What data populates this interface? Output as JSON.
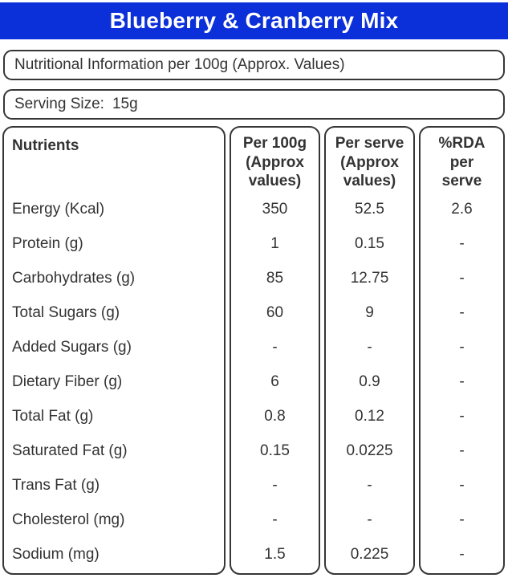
{
  "colors": {
    "header_bg": "#0B2FD8",
    "header_text": "#FFFFFF",
    "border": "#363636",
    "text": "#333333"
  },
  "header": {
    "title": "Blueberry & Cranberry Mix"
  },
  "info_box": {
    "text": "Nutritional Information per 100g (Approx. Values)"
  },
  "serving_box": {
    "label": "Serving Size:",
    "value": "15g"
  },
  "table": {
    "columns": {
      "nutrients": "Nutrients",
      "per_100g": "Per 100g\n(Approx\nvalues)",
      "per_serve": "Per serve\n(Approx\nvalues)",
      "rda": "%RDA\nper\nserve"
    },
    "rows": [
      {
        "label": "Energy (Kcal)",
        "per_100g": "350",
        "per_serve": "52.5",
        "rda": "2.6"
      },
      {
        "label": "Protein (g)",
        "per_100g": "1",
        "per_serve": "0.15",
        "rda": "-"
      },
      {
        "label": "Carbohydrates (g)",
        "per_100g": "85",
        "per_serve": "12.75",
        "rda": "-"
      },
      {
        "label": "Total Sugars (g)",
        "per_100g": "60",
        "per_serve": "9",
        "rda": "-"
      },
      {
        "label": "Added Sugars (g)",
        "per_100g": "-",
        "per_serve": "-",
        "rda": "-"
      },
      {
        "label": "Dietary Fiber (g)",
        "per_100g": "6",
        "per_serve": "0.9",
        "rda": "-"
      },
      {
        "label": "Total Fat (g)",
        "per_100g": "0.8",
        "per_serve": "0.12",
        "rda": "-"
      },
      {
        "label": "Saturated Fat (g)",
        "per_100g": "0.15",
        "per_serve": "0.0225",
        "rda": "-"
      },
      {
        "label": "Trans Fat (g)",
        "per_100g": "-",
        "per_serve": "-",
        "rda": "-"
      },
      {
        "label": "Cholesterol (mg)",
        "per_100g": "-",
        "per_serve": "-",
        "rda": "-"
      },
      {
        "label": "Sodium (mg)",
        "per_100g": "1.5",
        "per_serve": "0.225",
        "rda": "-"
      }
    ]
  }
}
